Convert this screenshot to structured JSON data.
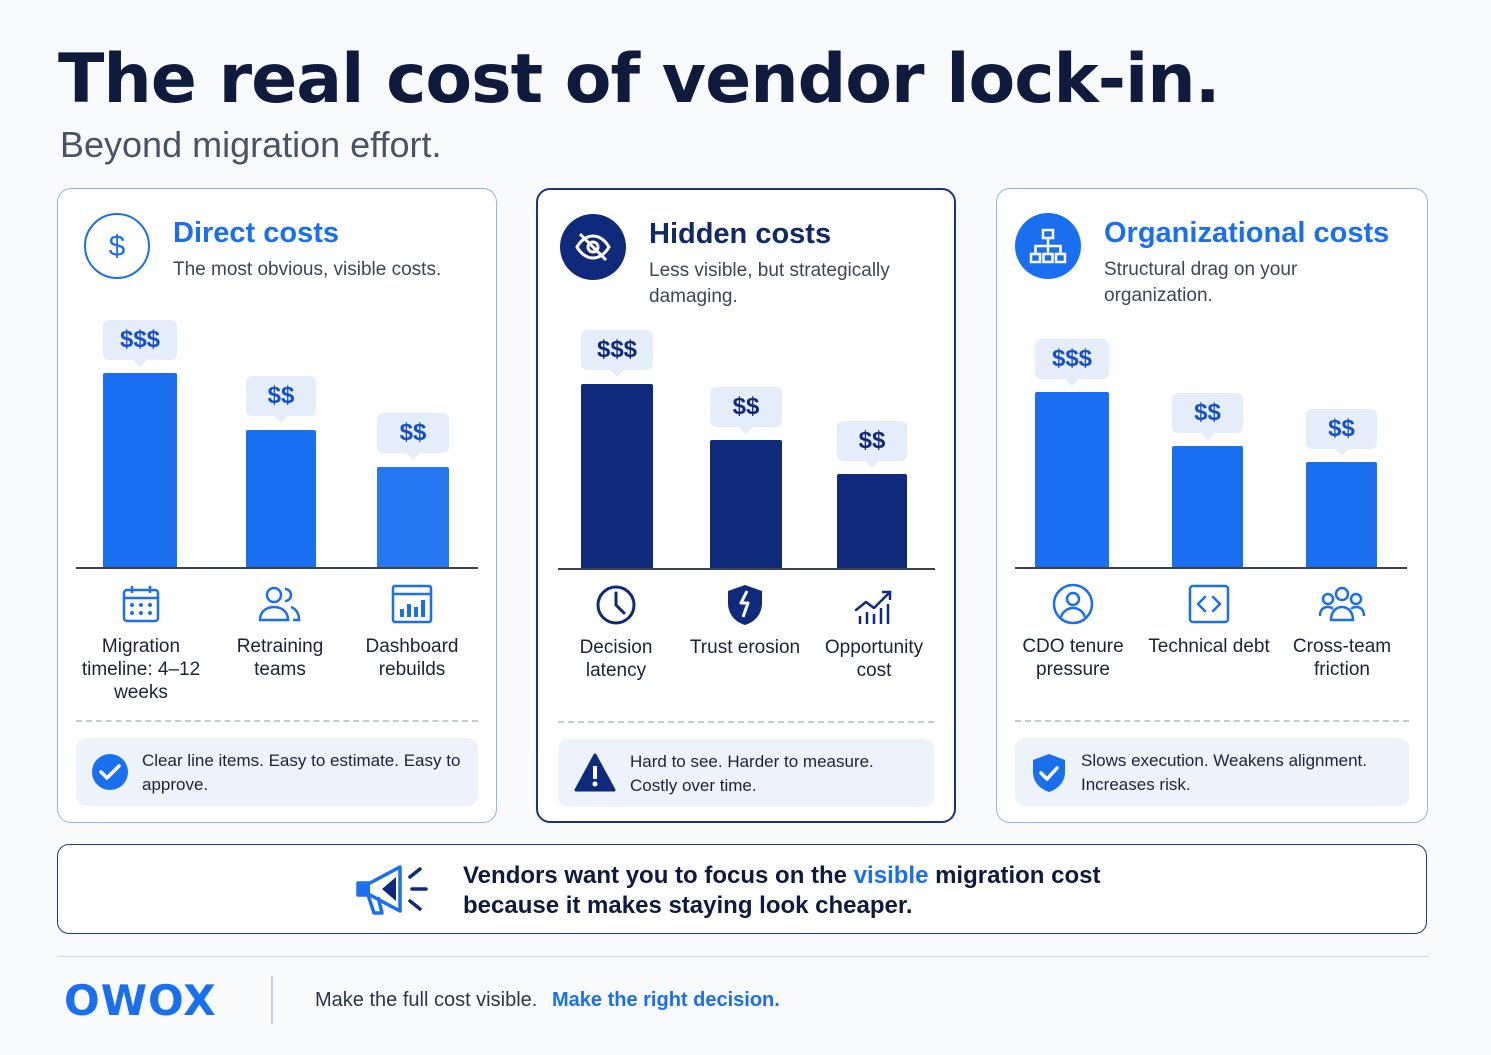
{
  "header": {
    "title": "The real cost of vendor lock-in.",
    "subtitle": "Beyond migration effort."
  },
  "cards": [
    {
      "title": "Direct costs",
      "description": "The most obvious, visible costs.",
      "icon": "dollar-icon",
      "color": "#1a6ff0",
      "bars": [
        {
          "label": "$$$",
          "level": 3
        },
        {
          "label": "$$",
          "level": 2
        },
        {
          "label": "$$",
          "level": 2
        }
      ],
      "categories": [
        {
          "icon": "calendar-icon",
          "label": "Migration timeline: 4–12 weeks"
        },
        {
          "icon": "users-icon",
          "label": "Retraining teams"
        },
        {
          "icon": "dashboard-icon",
          "label": "Dashboard rebuilds"
        }
      ],
      "note": {
        "icon": "check-circle-icon",
        "text": "Clear line items. Easy to estimate. Easy to approve."
      }
    },
    {
      "title": "Hidden costs",
      "description": "Less visible, but strategically damaging.",
      "icon": "eye-off-icon",
      "color": "#0f2a7a",
      "bars": [
        {
          "label": "$$$",
          "level": 3
        },
        {
          "label": "$$",
          "level": 2
        },
        {
          "label": "$$",
          "level": 2
        }
      ],
      "categories": [
        {
          "icon": "clock-icon",
          "label": "Decision latency"
        },
        {
          "icon": "broken-shield-icon",
          "label": "Trust erosion"
        },
        {
          "icon": "growth-chart-icon",
          "label": "Opportunity cost"
        }
      ],
      "note": {
        "icon": "warning-icon",
        "text": "Hard to see. Harder to measure. Costly over time."
      }
    },
    {
      "title": "Organizational costs",
      "description": "Structural drag on your organization.",
      "icon": "org-chart-icon",
      "color": "#1a6ff0",
      "bars": [
        {
          "label": "$$$",
          "level": 3
        },
        {
          "label": "$$",
          "level": 2
        },
        {
          "label": "$$",
          "level": 2
        }
      ],
      "categories": [
        {
          "icon": "user-circle-icon",
          "label": "CDO tenure pressure"
        },
        {
          "icon": "code-icon",
          "label": "Technical debt"
        },
        {
          "icon": "team-icon",
          "label": "Cross-team friction"
        }
      ],
      "note": {
        "icon": "shield-check-icon",
        "text": "Slows execution. Weakens alignment. Increases risk."
      }
    }
  ],
  "banner": {
    "icon": "megaphone-icon",
    "text_before": "Vendors want you to focus on the ",
    "highlight": "visible",
    "text_after": " migration cost because it makes staying look cheaper."
  },
  "footer": {
    "logo": "OWOX",
    "tagline_plain": "Make the full cost visible.",
    "tagline_accent": "Make the right decision."
  }
}
